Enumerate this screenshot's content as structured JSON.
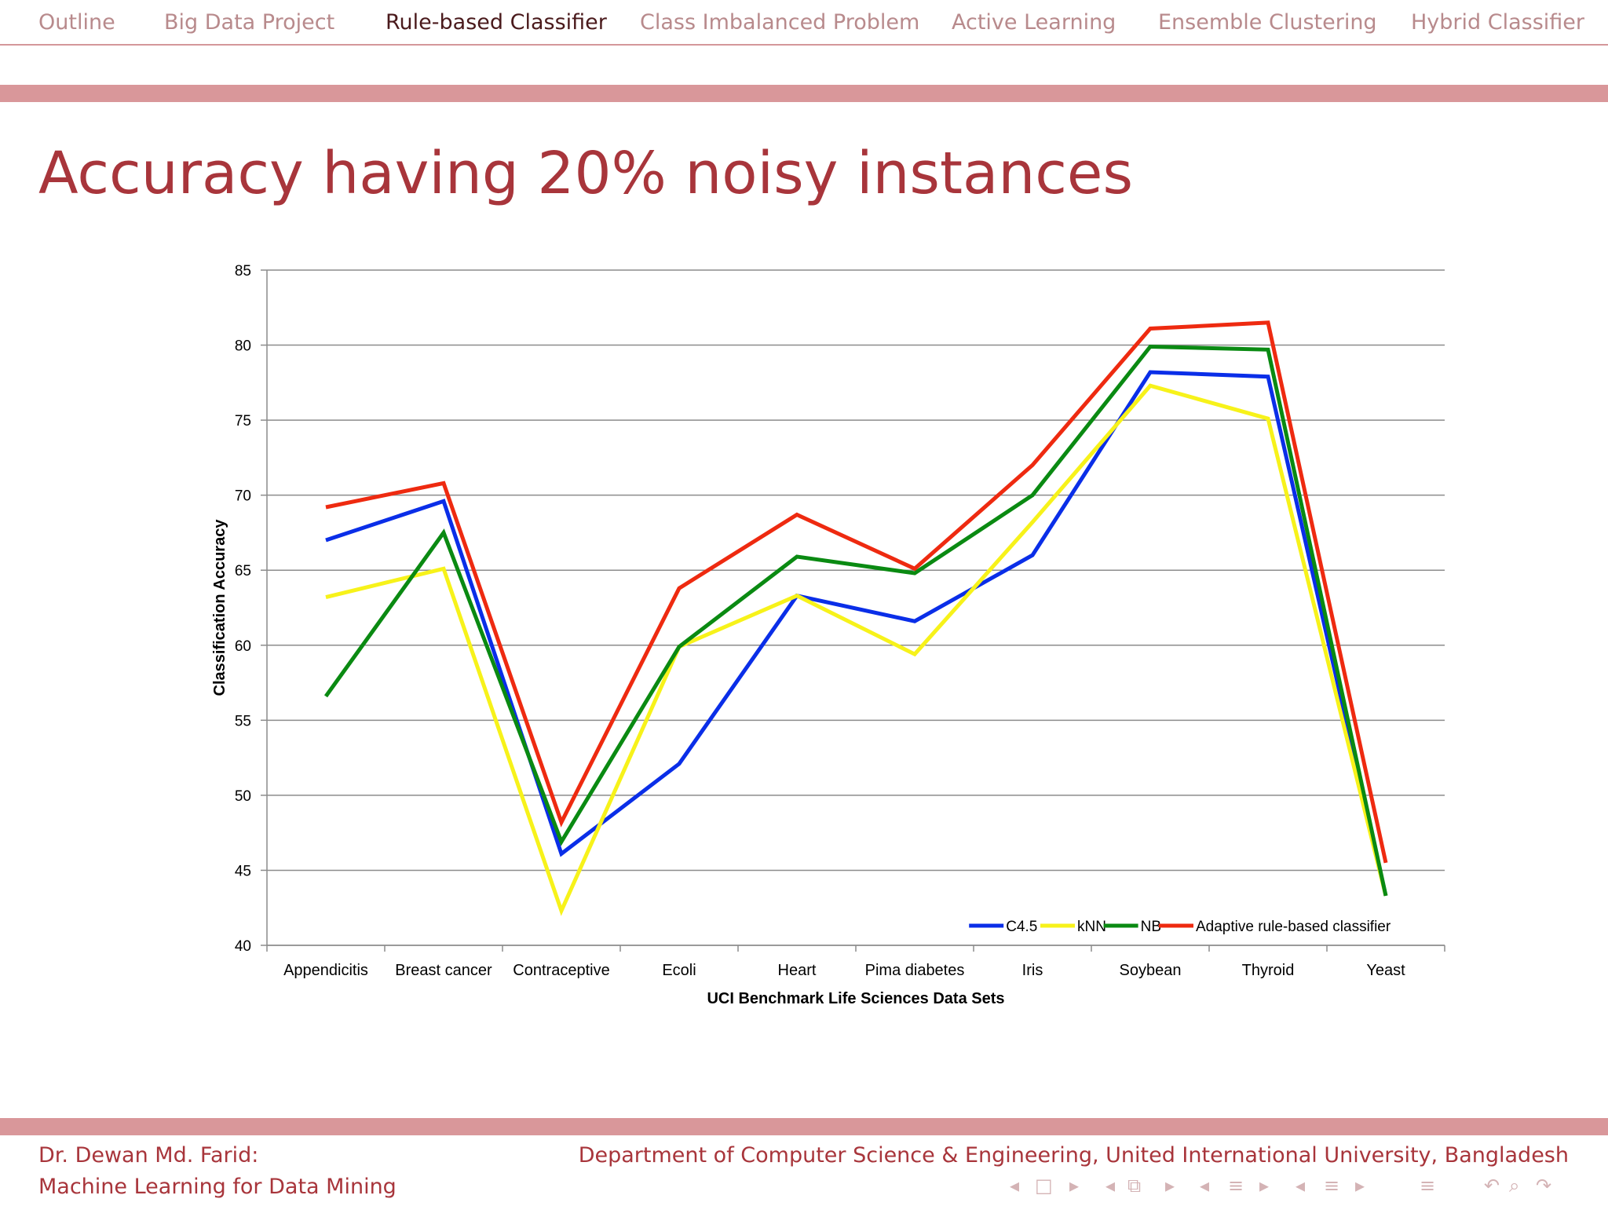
{
  "nav": {
    "items": [
      {
        "label": "Outline",
        "active": false
      },
      {
        "label": "Big Data Project",
        "active": false
      },
      {
        "label": "Rule-based Classifier",
        "active": true
      },
      {
        "label": "Class Imbalanced Problem",
        "active": false
      },
      {
        "label": "Active Learning",
        "active": false
      },
      {
        "label": "Ensemble Clustering",
        "active": false
      },
      {
        "label": "Hybrid Classifier",
        "active": false
      }
    ]
  },
  "slide": {
    "title": "Accuracy having 20% noisy instances"
  },
  "footer": {
    "author": "Dr. Dewan Md. Farid:",
    "course": "Machine Learning for Data Mining",
    "affiliation": "Department of Computer Science & Engineering, United International University, Bangladesh"
  },
  "colors": {
    "accent": "#a8353b",
    "band": "#d9979a",
    "nav_inactive": "#b88a8c",
    "nav_active": "#4a1a1c"
  },
  "chart_data": {
    "type": "line",
    "title": "",
    "xlabel": "UCI Benchmark Life Sciences Data Sets",
    "ylabel": "Classification Accuracy",
    "ylim": [
      40,
      85
    ],
    "yticks": [
      40,
      45,
      50,
      55,
      60,
      65,
      70,
      75,
      80,
      85
    ],
    "grid": true,
    "legend_position": "bottom-right",
    "categories": [
      "Appendicitis",
      "Breast cancer",
      "Contraceptive",
      "Ecoli",
      "Heart",
      "Pima diabetes",
      "Iris",
      "Soybean",
      "Thyroid",
      "Yeast"
    ],
    "series": [
      {
        "name": "C4.5",
        "color": "#0a2ee8",
        "values": [
          67.0,
          69.6,
          46.1,
          52.1,
          63.3,
          61.6,
          66.0,
          78.2,
          77.9,
          43.3
        ]
      },
      {
        "name": "kNN",
        "color": "#f7f21a",
        "values": [
          63.2,
          65.1,
          42.3,
          59.9,
          63.3,
          59.4,
          68.2,
          77.3,
          75.1,
          43.3
        ]
      },
      {
        "name": "NB",
        "color": "#0a8a12",
        "values": [
          56.6,
          67.5,
          46.9,
          59.9,
          65.9,
          64.8,
          70.0,
          79.9,
          79.7,
          43.3
        ]
      },
      {
        "name": "Adaptive rule-based classifier",
        "color": "#ee2a10",
        "values": [
          69.2,
          70.8,
          48.2,
          63.8,
          68.7,
          65.1,
          72.0,
          81.1,
          81.5,
          45.5
        ]
      }
    ]
  }
}
